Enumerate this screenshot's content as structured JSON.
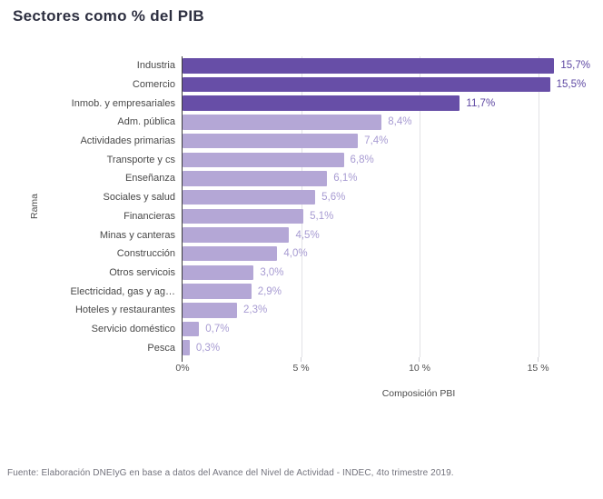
{
  "page": {
    "title": "Sectores como % del PIB",
    "footer": "Fuente: Elaboración DNEIyG en base a datos del Avance del Nivel de Actividad - INDEC, 4to trimestre 2019."
  },
  "chart_data": {
    "type": "bar",
    "orientation": "horizontal",
    "title": "Sectores como % del PIB",
    "xlabel": "Composición PBI",
    "ylabel": "Rama",
    "xlim": [
      0,
      17.2
    ],
    "grid": true,
    "legend": "none",
    "xticks": [
      {
        "value": 0,
        "label": "0%"
      },
      {
        "value": 5,
        "label": "5 %"
      },
      {
        "value": 10,
        "label": "10 %"
      },
      {
        "value": 15,
        "label": "15 %"
      }
    ],
    "bars": [
      {
        "category": "Industria",
        "value": 15.7,
        "label": "15,7%",
        "tone": "dark"
      },
      {
        "category": "Comercio",
        "value": 15.5,
        "label": "15,5%",
        "tone": "dark"
      },
      {
        "category": "Inmob. y empresariales",
        "value": 11.7,
        "label": "11,7%",
        "tone": "dark"
      },
      {
        "category": "Adm. pública",
        "value": 8.4,
        "label": "8,4%",
        "tone": "light"
      },
      {
        "category": "Actividades primarias",
        "value": 7.4,
        "label": "7,4%",
        "tone": "light"
      },
      {
        "category": "Transporte y cs",
        "value": 6.8,
        "label": "6,8%",
        "tone": "light"
      },
      {
        "category": "Enseñanza",
        "value": 6.1,
        "label": "6,1%",
        "tone": "light"
      },
      {
        "category": "Sociales y salud",
        "value": 5.6,
        "label": "5,6%",
        "tone": "light"
      },
      {
        "category": "Financieras",
        "value": 5.1,
        "label": "5,1%",
        "tone": "light"
      },
      {
        "category": "Minas y canteras",
        "value": 4.5,
        "label": "4,5%",
        "tone": "light"
      },
      {
        "category": "Construcción",
        "value": 4.0,
        "label": "4,0%",
        "tone": "light"
      },
      {
        "category": "Otros servicois",
        "value": 3.0,
        "label": "3,0%",
        "tone": "light"
      },
      {
        "category": "Electricidad, gas y ag…",
        "value": 2.9,
        "label": "2,9%",
        "tone": "light"
      },
      {
        "category": "Hoteles y restaurantes",
        "value": 2.3,
        "label": "2,3%",
        "tone": "light"
      },
      {
        "category": "Servicio doméstico",
        "value": 0.7,
        "label": "0,7%",
        "tone": "light"
      },
      {
        "category": "Pesca",
        "value": 0.3,
        "label": "0,3%",
        "tone": "light"
      }
    ],
    "colors": {
      "bar_dark": "#674ea7",
      "bar_light": "#b4a7d6",
      "value_label_dark": "#5e48a3",
      "value_label_light": "#a79bd2",
      "gridline": "#e2e2e6",
      "axis_line": "#3c3c3c",
      "tick_zero": "#3c3c3c",
      "tick_other": "#cfcfd4"
    }
  }
}
